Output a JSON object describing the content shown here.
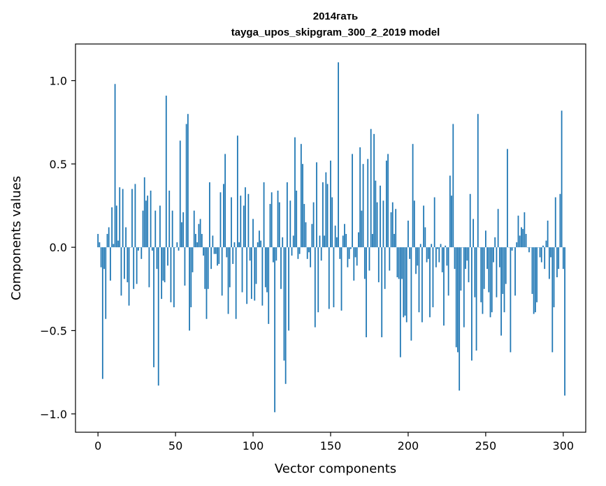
{
  "chart_data": {
    "type": "bar",
    "title": "2014гать",
    "subtitle": "tayga_upos_skipgram_300_2_2019 model",
    "xlabel": "Vector components",
    "ylabel": "Components values",
    "xlim": [
      -14.5,
      314.5
    ],
    "ylim": [
      -1.11,
      1.22
    ],
    "xticks": [
      0,
      50,
      100,
      150,
      200,
      250,
      300
    ],
    "xtick_labels": [
      "0",
      "50",
      "100",
      "150",
      "200",
      "250",
      "300"
    ],
    "yticks": [
      -1.0,
      -0.5,
      0.0,
      0.5,
      1.0
    ],
    "ytick_labels": [
      "−1.0",
      "−0.5",
      "0.0",
      "0.5",
      "1.0"
    ],
    "grid": false,
    "color": "#1f77b4",
    "values": [
      0.08,
      0.03,
      -0.12,
      -0.79,
      -0.13,
      -0.43,
      0.08,
      0.12,
      -0.2,
      0.24,
      0.02,
      0.98,
      0.25,
      0.04,
      0.36,
      -0.29,
      0.35,
      -0.19,
      0.12,
      -0.21,
      -0.35,
      0.0,
      0.35,
      -0.25,
      0.38,
      -0.22,
      -0.02,
      0.0,
      -0.07,
      0.22,
      0.42,
      0.28,
      0.31,
      -0.24,
      0.34,
      -0.02,
      -0.72,
      0.22,
      -0.13,
      -0.83,
      0.25,
      -0.31,
      -0.2,
      -0.21,
      0.91,
      -0.11,
      0.34,
      -0.33,
      0.22,
      -0.36,
      0.0,
      0.03,
      -0.02,
      0.64,
      0.15,
      0.21,
      -0.23,
      0.74,
      0.8,
      -0.5,
      -0.36,
      -0.15,
      0.22,
      0.08,
      0.03,
      0.14,
      0.17,
      0.08,
      -0.05,
      -0.25,
      -0.43,
      -0.25,
      0.39,
      -0.13,
      0.07,
      -0.04,
      -0.04,
      -0.11,
      -0.1,
      0.33,
      -0.29,
      0.38,
      0.56,
      -0.06,
      -0.4,
      -0.24,
      0.3,
      -0.1,
      0.03,
      -0.43,
      0.67,
      0.03,
      0.31,
      -0.27,
      0.25,
      0.36,
      -0.34,
      0.32,
      -0.08,
      -0.31,
      0.17,
      -0.32,
      -0.22,
      0.03,
      0.1,
      0.04,
      -0.35,
      0.39,
      -0.24,
      -0.27,
      -0.46,
      0.26,
      0.33,
      -0.09,
      -0.99,
      -0.08,
      0.34,
      0.27,
      -0.25,
      0.06,
      -0.68,
      -0.82,
      0.39,
      -0.5,
      0.28,
      -0.05,
      0.07,
      0.66,
      0.34,
      -0.07,
      -0.04,
      0.62,
      0.5,
      0.26,
      0.15,
      -0.07,
      -0.03,
      -0.12,
      0.14,
      0.27,
      -0.48,
      0.51,
      -0.39,
      0.07,
      -0.08,
      0.39,
      0.07,
      0.45,
      0.38,
      -0.37,
      0.52,
      0.3,
      -0.36,
      0.13,
      0.06,
      1.11,
      -0.07,
      -0.38,
      0.07,
      0.14,
      0.08,
      -0.12,
      -0.07,
      -0.01,
      0.56,
      -0.2,
      -0.06,
      -0.11,
      0.09,
      0.6,
      0.22,
      0.5,
      -0.19,
      -0.54,
      0.53,
      -0.14,
      0.71,
      0.08,
      0.68,
      0.4,
      0.27,
      -0.21,
      0.37,
      -0.54,
      0.28,
      -0.25,
      0.52,
      0.56,
      -0.14,
      0.21,
      0.27,
      0.08,
      0.23,
      -0.18,
      -0.19,
      -0.66,
      -0.19,
      -0.42,
      -0.41,
      -0.45,
      0.16,
      -0.07,
      -0.56,
      0.62,
      0.28,
      -0.16,
      -0.11,
      -0.39,
      0.02,
      -0.45,
      0.25,
      0.12,
      -0.09,
      -0.07,
      -0.42,
      0.02,
      -0.36,
      0.3,
      -0.12,
      -0.01,
      -0.09,
      0.02,
      -0.15,
      -0.47,
      0.01,
      -0.11,
      -0.29,
      0.43,
      0.31,
      0.74,
      -0.13,
      -0.6,
      -0.63,
      -0.86,
      -0.26,
      0.0,
      -0.48,
      -0.13,
      -0.08,
      -0.21,
      0.32,
      -0.68,
      0.17,
      -0.3,
      -0.62,
      0.8,
      0.0,
      -0.33,
      -0.4,
      -0.25,
      0.1,
      -0.13,
      -0.27,
      -0.42,
      -0.39,
      -0.09,
      0.06,
      -0.3,
      0.23,
      -0.12,
      -0.53,
      -0.28,
      -0.39,
      -0.22,
      0.59,
      0.0,
      -0.63,
      -0.02,
      0.0,
      -0.29,
      0.03,
      0.19,
      0.07,
      0.12,
      0.11,
      0.21,
      0.08,
      0.0,
      -0.03,
      0.0,
      -0.28,
      -0.4,
      -0.39,
      -0.33,
      0.0,
      -0.06,
      -0.09,
      0.01,
      -0.13,
      0.04,
      0.16,
      -0.19,
      -0.06,
      -0.63,
      -0.36,
      0.3,
      -0.18,
      -0.13,
      0.32,
      0.82,
      -0.13,
      -0.89
    ]
  }
}
